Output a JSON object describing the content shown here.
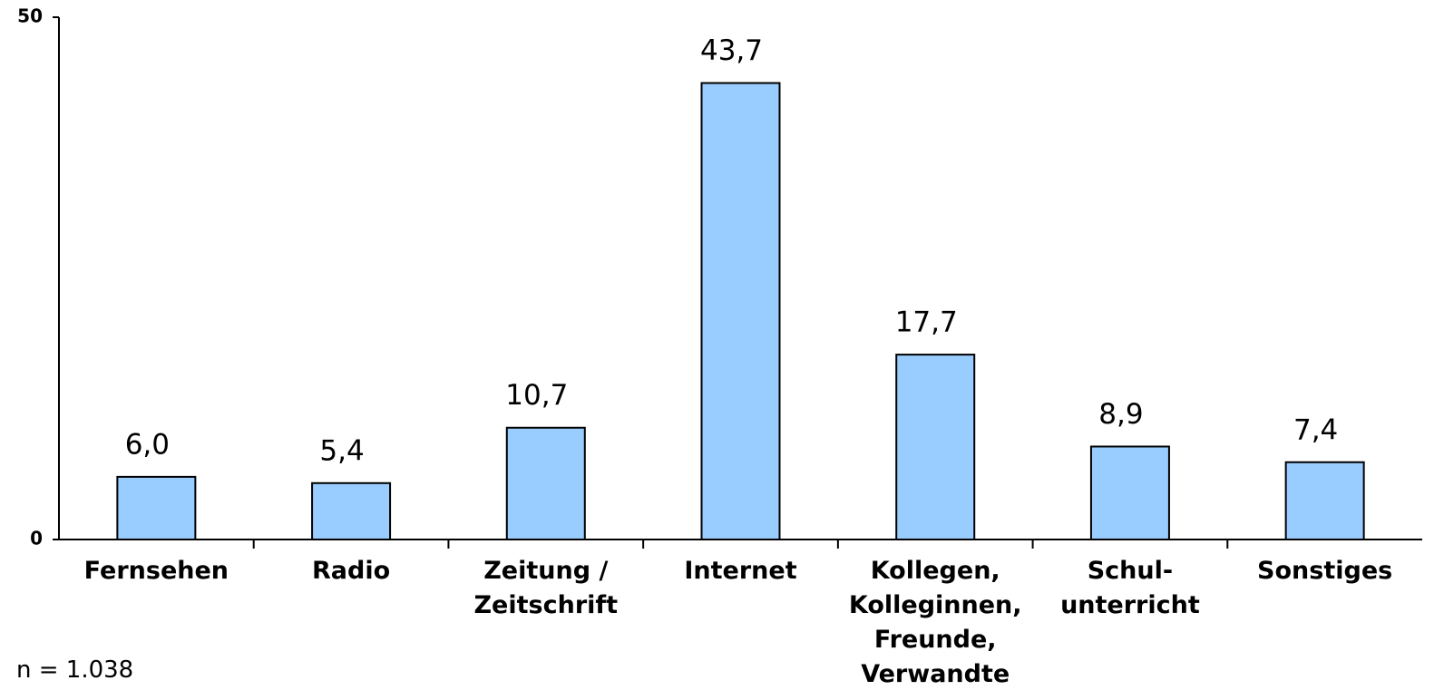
{
  "chart_data": {
    "type": "bar",
    "categories": [
      "Fernsehen",
      "Radio",
      "Zeitung /\nZeitschrift",
      "Internet",
      "Kollegen,\nKolleginnen,\nFreunde,\nVerwandte",
      "Schul-\nunterricht",
      "Sonstiges"
    ],
    "values": [
      6.0,
      5.4,
      10.7,
      43.7,
      17.7,
      8.9,
      7.4
    ],
    "value_labels": [
      "6,0",
      "5,4",
      "10,7",
      "43,7",
      "17,7",
      "8,9",
      "7,4"
    ],
    "color": "#99ccff",
    "ylim": [
      0,
      50
    ],
    "yticks": [
      0,
      50
    ],
    "grid": false,
    "note": "n = 1.038"
  }
}
